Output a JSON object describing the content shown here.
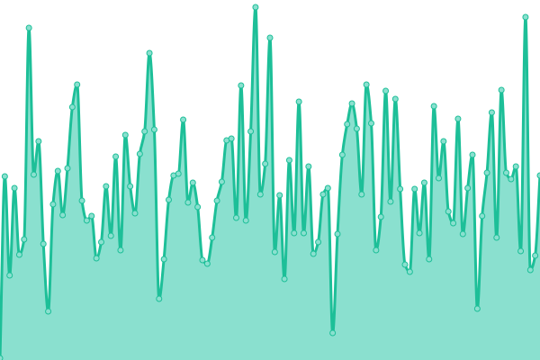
{
  "chart_data": {
    "type": "area",
    "title": "",
    "xlabel": "",
    "ylabel": "",
    "grid": false,
    "axes_visible": false,
    "ylim": [
      0,
      400
    ],
    "smooth": true,
    "markers": true,
    "colors": {
      "line": "#1dbf98",
      "fill": "#8ae0cf",
      "marker_fill": "#8ae0cf",
      "background": "#ffffff"
    },
    "values": [
      2,
      204,
      94,
      191,
      117,
      134,
      369,
      206,
      243,
      129,
      54,
      173,
      210,
      161,
      213,
      281,
      306,
      177,
      155,
      160,
      113,
      131,
      193,
      138,
      226,
      122,
      250,
      193,
      163,
      229,
      254,
      341,
      256,
      68,
      112,
      178,
      205,
      207,
      267,
      175,
      197,
      170,
      111,
      107,
      136,
      177,
      198,
      244,
      246,
      158,
      305,
      155,
      254,
      392,
      184,
      218,
      358,
      120,
      183,
      90,
      222,
      141,
      287,
      141,
      215,
      118,
      131,
      184,
      191,
      30,
      140,
      228,
      262,
      285,
      257,
      184,
      306,
      263,
      122,
      159,
      299,
      176,
      290,
      190,
      106,
      98,
      190,
      141,
      197,
      112,
      282,
      202,
      243,
      165,
      152,
      268,
      140,
      191,
      228,
      57,
      160,
      208,
      275,
      136,
      300,
      208,
      201,
      215,
      121,
      381,
      100,
      116,
      205
    ]
  }
}
